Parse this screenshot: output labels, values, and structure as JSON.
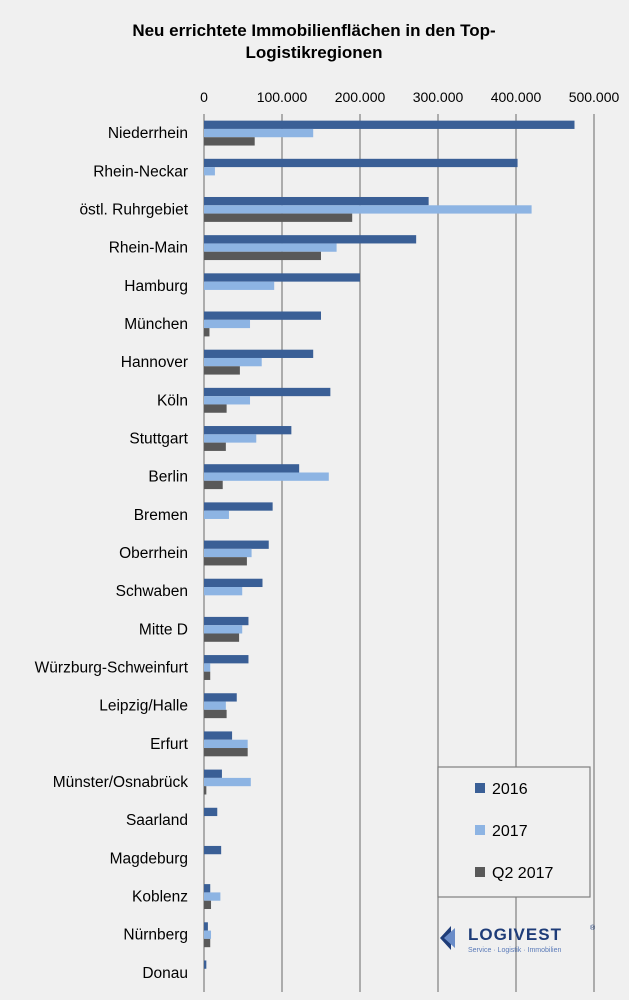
{
  "chart_data": {
    "type": "bar",
    "orientation": "horizontal",
    "title": "Neu errichtete Immobilienflächen in den Top-Logistikregionen",
    "title_lines": [
      "Neu errichtete Immobilienflächen in den Top-",
      "Logistikregionen"
    ],
    "xlim": [
      0,
      500000
    ],
    "xticks": [
      "0",
      "100.000",
      "200.000",
      "300.000",
      "400.000",
      "500.000"
    ],
    "grid": true,
    "legend_position": "bottom-right",
    "categories": [
      "Niederrhein",
      "Rhein-Neckar",
      "östl. Ruhrgebiet",
      "Rhein-Main",
      "Hamburg",
      "München",
      "Hannover",
      "Köln",
      "Stuttgart",
      "Berlin",
      "Bremen",
      "Oberrhein",
      "Schwaben",
      "Mitte D",
      "Würzburg-Schweinfurt",
      "Leipzig/Halle",
      "Erfurt",
      "Münster/Osnabrück",
      "Saarland",
      "Magdeburg",
      "Koblenz",
      "Nürnberg",
      "Donau"
    ],
    "series": [
      {
        "name": "2016",
        "color": "#3a5f96",
        "values": [
          475000,
          402000,
          288000,
          272000,
          200000,
          150000,
          140000,
          162000,
          112000,
          122000,
          88000,
          83000,
          75000,
          57000,
          57000,
          42000,
          36000,
          23000,
          17000,
          22000,
          8000,
          5000,
          3000
        ]
      },
      {
        "name": "2017",
        "color": "#8db4e3",
        "values": [
          140000,
          14000,
          420000,
          170000,
          90000,
          59000,
          74000,
          59000,
          67000,
          160000,
          32000,
          61000,
          49000,
          49000,
          8000,
          28000,
          56000,
          60000,
          0,
          0,
          21000,
          9000,
          0
        ]
      },
      {
        "name": "Q2 2017",
        "color": "#595959",
        "values": [
          65000,
          0,
          190000,
          150000,
          0,
          7000,
          46000,
          29000,
          28000,
          24000,
          0,
          55000,
          0,
          45000,
          8000,
          29000,
          56000,
          3000,
          0,
          0,
          9000,
          8000,
          0
        ]
      }
    ]
  },
  "logo": {
    "text": "LOGIVEST",
    "tagline": "Service · Logistik · Immobilien"
  }
}
